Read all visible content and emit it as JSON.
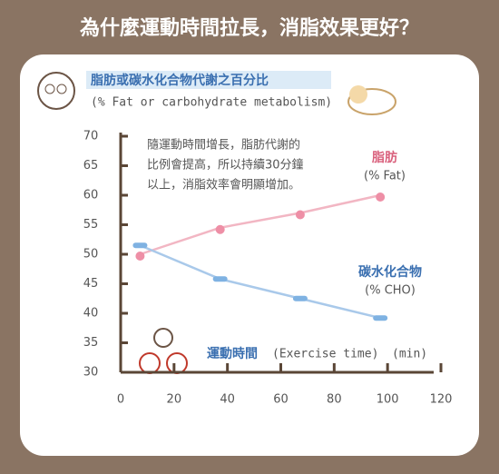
{
  "chart_data": {
    "type": "line",
    "title": "為什麼運動時間拉長，消脂效果更好？",
    "subtitle": "脂肪或碳水化合物代謝之百分比",
    "subtitle_en": "(% Fat or carbohydrate metabolism)",
    "note": [
      "隨運動時間增長，脂肪代謝的",
      "比例會提高，所以持續30分鐘",
      "以上，消脂效率會明顯增加。"
    ],
    "x_label": "運動時間",
    "x_label_en": "(Exercise time)",
    "x_unit": "(min)",
    "x": [
      10,
      40,
      70,
      100
    ],
    "series": [
      {
        "name": "脂肪",
        "unit_label": "(% Fat)",
        "color": "#f2b6c3",
        "marker_color": "#ee8fa6",
        "values": [
          50,
          54.5,
          57,
          60
        ]
      },
      {
        "name": "碳水化合物",
        "unit_label": "(% CHO)",
        "color": "#a9c9ea",
        "marker_color": "#7fb2e2",
        "values": [
          51.5,
          45.8,
          42.5,
          39.2
        ]
      }
    ],
    "xlim": [
      0,
      120
    ],
    "xticks": [
      0,
      20,
      40,
      60,
      80,
      100,
      120
    ],
    "ylim": [
      30,
      70
    ],
    "yticks": [
      30,
      35,
      40,
      45,
      50,
      55,
      60,
      65,
      70
    ]
  }
}
